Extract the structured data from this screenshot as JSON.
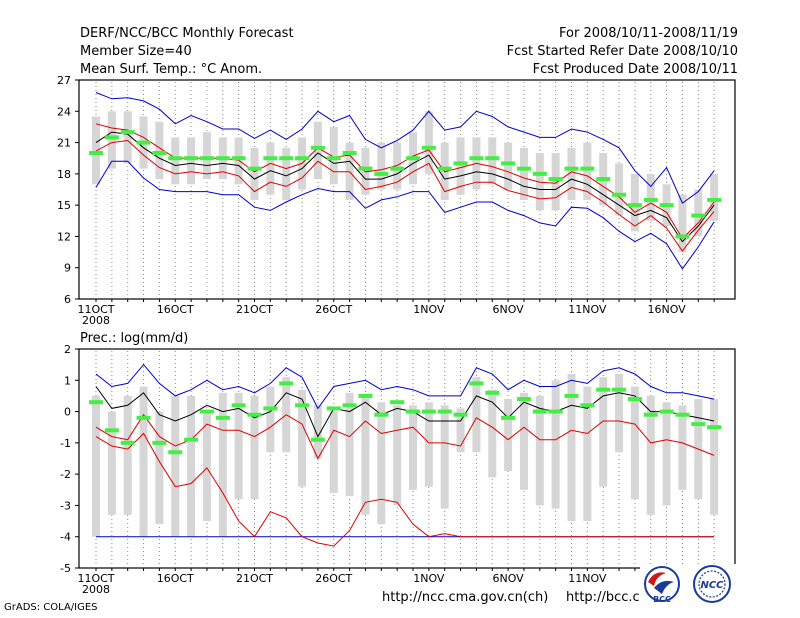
{
  "header": {
    "left": [
      "DERF/NCC/BCC Monthly Forecast",
      "Member Size=40",
      "Mean Surf. Temp.: °C Anom."
    ],
    "right": [
      "For 2008/10/11-2008/11/19",
      "Fcst Started Refer Date 2008/10/10",
      "Fcst Produced Date 2008/10/11"
    ]
  },
  "chart_data": [
    {
      "type": "box-ensemble",
      "title": "Mean Surf. Temp.: °C Anom.",
      "ylim": [
        6,
        27
      ],
      "yticks": [
        6,
        9,
        12,
        15,
        18,
        21,
        24,
        27
      ],
      "xtick_labels": [
        "11OCT",
        "16OCT",
        "21OCT",
        "26OCT",
        "1NOV",
        "6NOV",
        "11NOV",
        "16NOV"
      ],
      "xtick_index": [
        0,
        5,
        10,
        15,
        21,
        26,
        31,
        36
      ],
      "year_label": "2008",
      "days": 40,
      "box_low": [
        17,
        18.5,
        19,
        18.5,
        17.5,
        17,
        17,
        17.5,
        17.5,
        17,
        15.5,
        16,
        15.5,
        16.5,
        17.5,
        17,
        15.5,
        16,
        16.5,
        16.5,
        17,
        18,
        15.5,
        16,
        16.5,
        17,
        16.5,
        15.5,
        14.5,
        14.5,
        15.5,
        15.5,
        15,
        14,
        12.5,
        13.5,
        13,
        10.5,
        12,
        13.5
      ],
      "box_high": [
        23.5,
        24,
        24,
        23.5,
        23,
        21.5,
        21.5,
        22,
        21.5,
        21.5,
        20.5,
        21,
        20.5,
        21.5,
        23,
        22.5,
        21,
        20.5,
        21,
        21,
        22,
        24,
        21,
        21.5,
        21.5,
        21.5,
        21,
        20.5,
        20,
        20,
        20.5,
        21,
        20,
        19,
        18,
        18,
        17,
        16,
        16.5,
        18
      ],
      "ensemble_mean": [
        20,
        21.5,
        22,
        21,
        20,
        19.5,
        19.5,
        19.5,
        19.5,
        19.5,
        18.5,
        19.5,
        19.5,
        19.5,
        20.5,
        19.5,
        20,
        18.5,
        18,
        18.5,
        19.5,
        20.5,
        18.5,
        19,
        19.5,
        19.5,
        19,
        18.5,
        18,
        17.5,
        18.5,
        18.5,
        17.5,
        16,
        15,
        15.5,
        15,
        12,
        14,
        15.5
      ],
      "black_line": [
        21,
        22,
        21.8,
        20.5,
        19.5,
        18.8,
        19,
        18.8,
        19,
        18.8,
        17.5,
        18.3,
        17.8,
        18.5,
        20,
        19,
        19.2,
        17.5,
        17.5,
        18,
        19,
        19.8,
        17.5,
        17.8,
        18.2,
        18,
        17.5,
        16.8,
        16.5,
        16.5,
        17.5,
        17,
        16,
        15,
        14,
        14.5,
        13.8,
        11.5,
        13,
        15
      ],
      "upper_line": [
        25.8,
        25.2,
        25.3,
        25,
        24.2,
        22.8,
        23.6,
        23,
        22.3,
        22.3,
        21.4,
        22.2,
        21.3,
        22.3,
        24,
        23,
        23.6,
        21.3,
        20.5,
        21.2,
        22.2,
        24,
        22.2,
        22.5,
        24,
        23.5,
        22.5,
        22,
        21.5,
        21.5,
        22.3,
        22,
        21.3,
        20.5,
        18.3,
        16.8,
        18.6,
        15.2,
        16.3,
        18.3
      ],
      "lower_line": [
        16.7,
        19.2,
        19.2,
        17.6,
        16.5,
        16.3,
        16.3,
        16.3,
        16,
        16,
        14.8,
        14.5,
        15.3,
        16,
        16.6,
        16.3,
        16.3,
        14.7,
        15.5,
        15.8,
        16.3,
        16.3,
        14.3,
        14.8,
        15.3,
        15.3,
        14.5,
        14,
        13.3,
        13,
        14.8,
        14.7,
        13.8,
        12.5,
        11.5,
        12.3,
        11.3,
        8.9,
        11,
        13.4
      ],
      "red1_line": [
        22.8,
        22.4,
        22.2,
        21.5,
        20.5,
        19.5,
        19.5,
        19.5,
        19.5,
        19.3,
        18.2,
        19,
        18.5,
        19,
        20.5,
        19.6,
        19.8,
        18.2,
        18.4,
        18.8,
        19.7,
        20.3,
        18.2,
        18.6,
        19,
        18.7,
        18.2,
        17.6,
        17.2,
        17.1,
        18.2,
        17.8,
        16.8,
        15.8,
        14.3,
        15.2,
        14.3,
        11.8,
        13.3,
        15.3
      ],
      "red2_line": [
        20.2,
        21,
        21.2,
        19.8,
        18.6,
        18,
        18.2,
        18,
        18.2,
        17.8,
        16.3,
        17.2,
        16.8,
        17.6,
        19.2,
        18.2,
        18.2,
        16.5,
        16.8,
        17.2,
        18.2,
        19,
        16.3,
        16.8,
        17.2,
        17.2,
        16.4,
        16,
        15.6,
        15.7,
        16.7,
        16.3,
        15.3,
        14.1,
        13,
        14,
        12.8,
        10.6,
        12.6,
        14.4
      ],
      "colors": {
        "box": "#d6d6d6",
        "mean": "#44ee44",
        "black": "#000000",
        "blue": "#0000cc",
        "red": "#dd0000",
        "dots": "#888888"
      }
    },
    {
      "type": "box-ensemble",
      "title": "Prec.: log(mm/d)",
      "ylim": [
        -5,
        2
      ],
      "yticks": [
        -5,
        -4,
        -3,
        -2,
        -1,
        0,
        1,
        2
      ],
      "xtick_labels": [
        "11OCT",
        "16OCT",
        "21OCT",
        "26OCT",
        "1NOV",
        "6NOV",
        "11NOV",
        "16NOV"
      ],
      "xtick_index": [
        0,
        5,
        10,
        15,
        21,
        26,
        31,
        36
      ],
      "year_label": "2008",
      "days": 40,
      "box_low": [
        -4,
        -3.3,
        -3.3,
        -4,
        -3.6,
        -4,
        -4,
        -3.5,
        -4,
        -2.8,
        -2.8,
        -1.3,
        -1.3,
        -2.4,
        -1.5,
        -2.6,
        -2.7,
        -3.3,
        -3.6,
        -3,
        -2.5,
        -2.4,
        -3.1,
        -1.3,
        -1.3,
        -2.1,
        -1.9,
        -2.5,
        -3,
        -3.1,
        -3.5,
        -3.5,
        -2.4,
        -1.3,
        -2.8,
        -3.3,
        -3,
        -2.5,
        -2.8,
        -3.3
      ],
      "box_high": [
        0.5,
        0,
        0.5,
        0.8,
        0,
        0.5,
        0.5,
        0,
        0.6,
        0.6,
        0.5,
        0.8,
        1.1,
        0.7,
        0.2,
        0,
        0.6,
        0.5,
        0.3,
        0.2,
        0.2,
        0.3,
        0.2,
        0.1,
        1.1,
        0.7,
        0.4,
        0.6,
        0.5,
        1,
        1.2,
        0.8,
        1.1,
        1.2,
        0.8,
        0.5,
        0.3,
        0.2,
        0.4,
        0.4
      ],
      "ensemble_mean": [
        0.3,
        -0.6,
        -1,
        -0.2,
        -1,
        -1.3,
        -0.9,
        0,
        -0.2,
        0.2,
        -0.1,
        0.1,
        0.9,
        0.2,
        -0.9,
        0.1,
        0.2,
        0.5,
        -0.1,
        0.3,
        0,
        0,
        0,
        -0.1,
        0.9,
        0.6,
        -0.2,
        0.4,
        0,
        0,
        0.5,
        0.2,
        0.7,
        0.7,
        0.4,
        -0.1,
        0,
        -0.1,
        -0.4,
        -0.5
      ],
      "black_line": [
        0.8,
        0.1,
        0.2,
        0.6,
        -0.1,
        -0.3,
        -0.1,
        0.2,
        0,
        0.1,
        -0.2,
        0,
        0.6,
        0.4,
        -0.8,
        0.1,
        0,
        0.3,
        -0.1,
        0.1,
        0,
        -0.3,
        -0.3,
        -0.3,
        0.5,
        0.3,
        -0.2,
        0.3,
        0.1,
        0,
        0.2,
        0.1,
        0.5,
        0.6,
        0.5,
        0,
        0,
        -0.1,
        -0.2,
        -0.3
      ],
      "upper_line": [
        1.2,
        0.8,
        0.9,
        1.5,
        0.9,
        0.5,
        0.7,
        1,
        0.7,
        0.8,
        0.6,
        0.9,
        1.4,
        1.1,
        0.1,
        0.8,
        0.9,
        1,
        0.7,
        0.8,
        0.7,
        0.5,
        0.5,
        0.5,
        1.4,
        1.2,
        0.7,
        1,
        0.8,
        0.8,
        1,
        0.9,
        1.3,
        1.4,
        1.2,
        0.8,
        0.6,
        0.6,
        0.5,
        0.4
      ],
      "lower_line": [
        -4,
        -4,
        -4,
        -4,
        -4,
        -4,
        -4,
        -4,
        -4,
        -4,
        -4,
        -4,
        -4,
        -4,
        -4,
        -4,
        -4,
        -4,
        -4,
        -4,
        -4,
        -4,
        -4,
        -4,
        -4,
        -4,
        -4,
        -4,
        -4,
        -4,
        -4,
        -4,
        -4,
        -4,
        -4,
        -4,
        -4,
        -4,
        -4,
        -4
      ],
      "red1_line": [
        -0.8,
        -1.1,
        -1.2,
        -0.7,
        -1.6,
        -2.4,
        -2.3,
        -1.8,
        -2.6,
        -3.5,
        -4,
        -3.2,
        -3.4,
        -4,
        -4.2,
        -4.3,
        -3.8,
        -2.9,
        -2.8,
        -2.9,
        -3.6,
        -4,
        -3.9,
        -4,
        -4,
        -4,
        -4,
        -4,
        -4,
        -4,
        -4,
        -4,
        -4,
        -4,
        -4,
        -4,
        -4,
        -4,
        -4,
        -4
      ],
      "red2_line": [
        -0.5,
        -0.8,
        -0.9,
        -0.1,
        -0.8,
        -1.1,
        -0.9,
        -0.4,
        -0.6,
        -0.6,
        -0.8,
        -0.5,
        -0.1,
        -0.4,
        -1.5,
        -0.6,
        -0.8,
        -0.3,
        -0.7,
        -0.6,
        -0.5,
        -1,
        -1,
        -1.1,
        -0.2,
        -0.5,
        -0.9,
        -0.5,
        -0.9,
        -0.9,
        -0.6,
        -0.7,
        -0.3,
        -0.3,
        -0.4,
        -1,
        -0.9,
        -1,
        -1.2,
        -1.4
      ],
      "colors": {
        "box": "#d6d6d6",
        "mean": "#44ee44",
        "black": "#000000",
        "blue": "#0000cc",
        "red": "#dd0000",
        "dots": "#888888"
      }
    }
  ],
  "footer": {
    "grads": "GrADS: COLA/IGES",
    "url1": "http://ncc.cma.gov.cn(ch)",
    "url2": "http://bcc.c",
    "logo1": "BCC",
    "logo2": "NCC"
  }
}
